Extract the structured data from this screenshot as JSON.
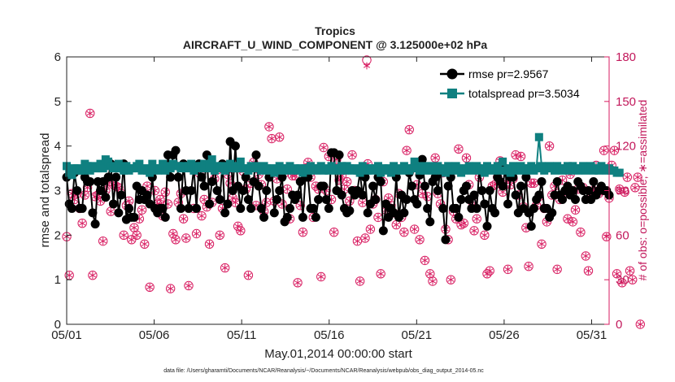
{
  "chart_data": {
    "type": "line",
    "title": "Tropics",
    "subtitle": "AIRCRAFT_U_WIND_COMPONENT @ 3.125000e+02 hPa",
    "xlabel": "May.01,2014 00:00:00 start",
    "ylabel": "rmse and totalspread",
    "ylabel_right": "# of obs: o=possible; ∗=assimilated",
    "footnote": "data file: /Users/gharamti/Documents/NCAR/Reanalysis/~/Documents/NCAR/Reanalysis/webpub/obs_diag_output_2014-05.nc",
    "x_tick_labels": [
      "05/01",
      "05/06",
      "05/11",
      "05/16",
      "05/21",
      "05/26",
      "05/31"
    ],
    "x_tick_days": [
      1,
      6,
      11,
      16,
      21,
      26,
      31
    ],
    "xlim": [
      1,
      32
    ],
    "ylim": [
      0,
      6
    ],
    "y_ticks": [
      0,
      1,
      2,
      3,
      4,
      5,
      6
    ],
    "ylim_right": [
      0,
      180
    ],
    "y_ticks_right": [
      0,
      30,
      60,
      90,
      120,
      150,
      180
    ],
    "legend_position": "top-right",
    "colors": {
      "rmse": "#000000",
      "totalspread": "#0f8080",
      "obs": "#d81b60"
    },
    "series": [
      {
        "name": "rmse pr=2.9567",
        "values": [
          3.3,
          2.7,
          2.6,
          3.4,
          3.0,
          2.6,
          2.6,
          3.3,
          3.2,
          3.2,
          2.5,
          2.25,
          3.2,
          3.0,
          3.2,
          2.85,
          3.3,
          3.6,
          2.7,
          3.3,
          2.5,
          2.9,
          3.6,
          2.35,
          2.6,
          2.4,
          2.4,
          3.1,
          2.8,
          3.0,
          2.8,
          2.9,
          2.7,
          3.3,
          2.6,
          2.5,
          2.6,
          2.6,
          2.4,
          3.8,
          3.3,
          3.8,
          3.9,
          3.3,
          2.6,
          3.6,
          3.0,
          2.6,
          3.0,
          3.5,
          2.6,
          3.6,
          3.3,
          3.1,
          3.8,
          2.7,
          3.2,
          3.5,
          3.0,
          2.8,
          3.6,
          2.5,
          2.7,
          4.1,
          3.0,
          4.0,
          3.1,
          2.6,
          3.0,
          3.3,
          2.8,
          2.6,
          3.2,
          3.8,
          3.1,
          2.6,
          2.4,
          3.0,
          3.3,
          3.4,
          2.5,
          2.8,
          3.0,
          3.3,
          2.3,
          2.4,
          2.6,
          2.9,
          2.8,
          2.9,
          3.2,
          2.4,
          3.3,
          3.3,
          2.6,
          2.6,
          2.4,
          2.8,
          3.1,
          3.1,
          2.8,
          2.6,
          3.85,
          3.85,
          3.0,
          3.8,
          2.9,
          2.6,
          2.5,
          2.55,
          3.0,
          2.9,
          3.0,
          3.4,
          2.9,
          3.3,
          2.5,
          2.7,
          3.1,
          2.8,
          3.3,
          3.2,
          2.1,
          2.7,
          2.4,
          2.6,
          2.5,
          3.3,
          2.4,
          2.9,
          2.5,
          2.8,
          3.4,
          3.1,
          2.8,
          2.7,
          3.35,
          3.7,
          3.1,
          2.6,
          2.3,
          3.2,
          3.3,
          3.0,
          3.5,
          2.6,
          1.9,
          3.1,
          3.3,
          2.6,
          2.6,
          2.4,
          2.8,
          3.0,
          3.1,
          2.8,
          2.6,
          2.9,
          2.6,
          3.5,
          3.0,
          2.7,
          2.2,
          3.0,
          2.6,
          2.5,
          3.3,
          3.2,
          3.1,
          3.5,
          2.7,
          3.3,
          3.3,
          2.9,
          2.5,
          3.1,
          2.6,
          3.3,
          2.5,
          2.2,
          2.6,
          2.8,
          2.9,
          3.2,
          2.6,
          2.6,
          2.4,
          2.5,
          2.9,
          3.2,
          2.9,
          2.8,
          3.0,
          3.1,
          2.9,
          3.0,
          2.8,
          3.2,
          3.1,
          3.0,
          2.8,
          3.0,
          2.8,
          3.2,
          2.9,
          3.0,
          3.1,
          3.0,
          3.0,
          2.9
        ]
      },
      {
        "name": "totalspread pr=3.5034",
        "values": [
          3.55,
          3.4,
          3.35,
          3.5,
          3.5,
          3.45,
          3.45,
          3.6,
          3.55,
          3.45,
          3.55,
          3.5,
          3.5,
          3.6,
          3.5,
          3.7,
          3.65,
          3.55,
          3.5,
          3.5,
          3.6,
          3.5,
          3.45,
          3.55,
          3.45,
          3.5,
          3.5,
          3.55,
          3.6,
          3.45,
          3.5,
          3.45,
          3.4,
          3.6,
          3.5,
          3.45,
          3.5,
          3.6,
          3.45,
          3.55,
          3.5,
          3.6,
          3.55,
          3.55,
          3.5,
          3.55,
          3.5,
          3.55,
          3.6,
          3.45,
          3.55,
          3.5,
          3.55,
          3.6,
          3.5,
          3.55,
          3.7,
          3.45,
          3.55,
          3.5,
          3.55,
          3.45,
          3.5,
          3.6,
          3.55,
          3.5,
          3.5,
          3.65,
          3.5,
          3.5,
          3.45,
          3.55,
          3.5,
          3.55,
          3.5,
          3.45,
          3.55,
          3.5,
          3.45,
          3.5,
          3.4,
          3.45,
          3.55,
          3.5,
          3.45,
          3.5,
          3.55,
          3.45,
          3.5,
          3.45,
          3.5,
          3.4,
          3.5,
          3.45,
          3.55,
          3.5,
          3.45,
          3.5,
          3.55,
          3.45,
          3.5,
          3.45,
          3.55,
          3.5,
          3.45,
          3.5,
          3.55,
          3.45,
          3.55,
          3.5,
          3.45,
          3.5,
          3.45,
          3.4,
          3.55,
          3.5,
          3.45,
          3.5,
          3.45,
          3.5,
          3.55,
          3.4,
          3.5,
          3.45,
          3.5,
          3.4,
          3.55,
          3.45,
          3.5,
          3.45,
          3.55,
          3.5,
          3.45,
          3.5,
          3.65,
          3.5,
          3.45,
          3.55,
          3.45,
          3.5,
          3.55,
          3.45,
          3.5,
          3.55,
          3.45,
          3.5,
          3.4,
          3.55,
          3.5,
          3.45,
          3.55,
          3.5,
          3.4,
          3.45,
          3.5,
          3.55,
          3.45,
          3.5,
          3.55,
          3.45,
          3.5,
          3.4,
          3.55,
          3.5,
          3.45,
          3.5,
          3.55,
          3.45,
          3.65,
          3.45,
          3.5,
          3.4,
          3.55,
          3.5,
          3.45,
          3.55,
          3.5,
          3.45,
          3.5,
          3.55,
          3.45,
          3.5,
          4.2,
          3.55,
          3.45,
          3.5,
          3.55,
          3.5,
          3.45,
          3.55,
          3.5,
          3.45,
          3.5,
          3.55,
          3.45,
          3.55,
          3.5,
          3.45,
          3.5,
          3.55,
          3.45,
          3.5,
          3.55,
          3.45,
          3.5,
          3.45,
          3.55,
          3.5,
          3.45,
          3.5,
          3.45,
          3.45,
          3.4,
          3.4
        ]
      }
    ],
    "obs_possible": [
      59,
      33,
      88,
      84,
      88,
      78,
      68,
      87,
      92,
      142,
      33,
      86,
      87,
      83,
      56,
      90,
      96,
      76,
      94,
      93,
      92,
      88,
      60,
      80,
      83,
      57,
      65,
      60,
      71,
      77,
      54,
      93,
      25,
      106,
      90,
      81,
      84,
      73,
      89,
      81,
      24,
      61,
      57,
      82,
      88,
      71,
      58,
      26,
      107,
      78,
      61,
      102,
      73,
      84,
      79,
      54,
      82,
      98,
      104,
      60,
      78,
      38,
      101,
      95,
      85,
      82,
      66,
      63,
      103,
      91,
      33,
      95,
      109,
      80,
      101,
      94,
      76,
      82,
      133,
      125,
      83,
      98,
      126,
      81,
      102,
      91,
      71,
      100,
      100,
      28,
      80,
      62,
      105,
      109,
      99,
      72,
      93,
      91,
      32,
      119,
      90,
      113,
      84,
      62,
      111,
      97,
      100,
      91,
      96,
      83,
      114,
      90,
      56,
      29,
      82,
      58,
      108,
      64,
      81,
      84,
      72,
      34,
      96,
      77,
      85,
      80,
      75,
      67,
      88,
      72,
      62,
      117,
      131,
      105,
      64,
      94,
      57,
      88,
      43,
      86,
      34,
      29,
      112,
      88,
      81,
      102,
      64,
      57,
      30,
      76,
      71,
      118,
      67,
      68,
      112,
      94,
      83,
      63,
      71,
      99,
      103,
      60,
      34,
      36,
      93,
      94,
      99,
      110,
      89,
      94,
      37,
      94,
      98,
      114,
      87,
      113,
      79,
      65,
      39,
      95,
      95,
      80,
      86,
      54,
      78,
      69,
      120,
      87,
      93,
      37,
      84,
      97,
      88,
      71,
      101,
      69,
      77,
      91,
      62,
      92,
      46,
      36,
      88,
      90,
      107,
      88,
      90,
      117,
      59,
      85,
      107,
      117,
      34,
      91,
      28,
      89,
      99,
      36,
      30,
      92,
      99,
      0
    ],
    "obs_special": [
      [
        18.15,
        174
      ]
    ]
  }
}
